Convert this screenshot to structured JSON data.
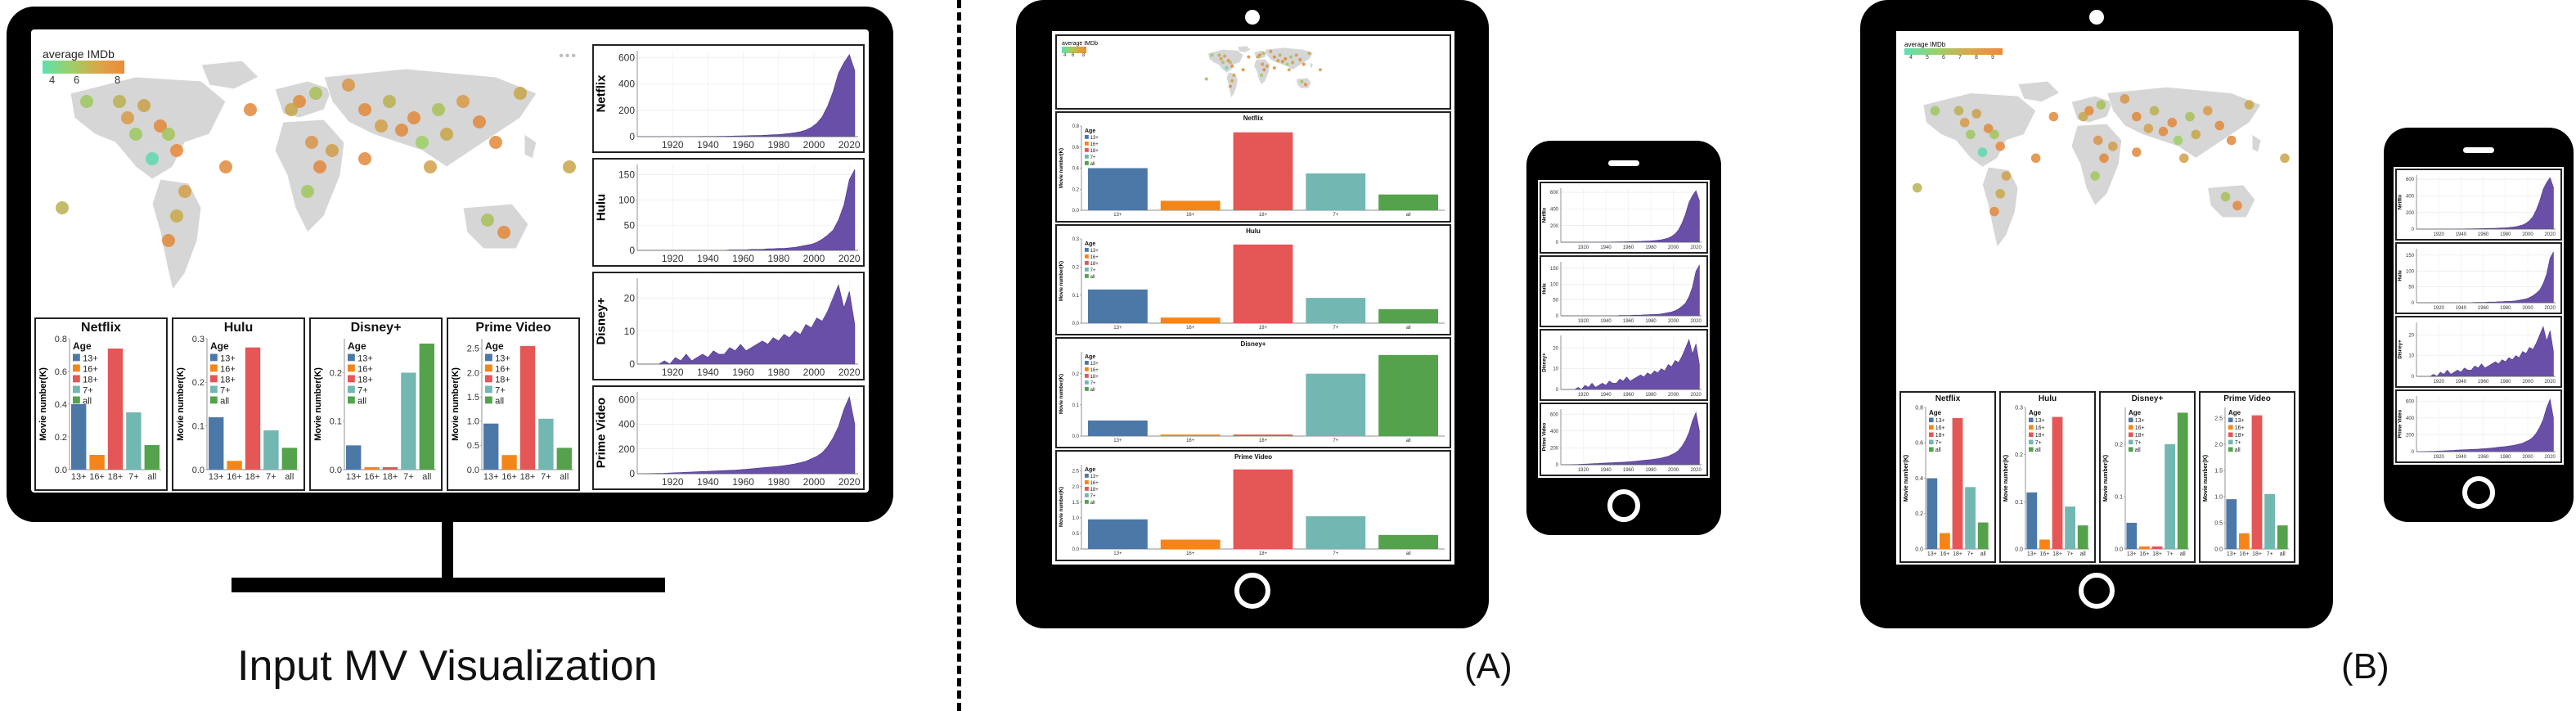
{
  "captions": {
    "input": "Input MV Visualization",
    "a": "(A)",
    "b": "(B)"
  },
  "colors": {
    "ocean": "#ffffff",
    "land": "#d6d6d6",
    "area_fill": "#6a4fa8",
    "age_colors": [
      "#4c78a8",
      "#f58518",
      "#e45756",
      "#72b7b2",
      "#54a24b"
    ]
  },
  "map": {
    "legend_title": "average IMDb",
    "legend_ticks": [
      "4",
      "6",
      "8"
    ],
    "legend_ticks_b": [
      "4",
      "5",
      "6",
      "7",
      "8",
      "9"
    ],
    "legend_gradient": [
      "#5ee0b0",
      "#9ad06a",
      "#d8a84a",
      "#f08a3a"
    ]
  },
  "age_legend": {
    "title": "Age",
    "labels": [
      "13+",
      "16+",
      "18+",
      "7+",
      "all"
    ]
  },
  "bar_y_label": "Movie number(K)",
  "bar_charts": [
    {
      "service": "Netflix",
      "ticks": [
        "0.8",
        "0.6",
        "0.4",
        "0.2",
        "0.0"
      ],
      "ymax": 0.8,
      "values": [
        0.4,
        0.09,
        0.74,
        0.35,
        0.15
      ]
    },
    {
      "service": "Hulu",
      "ticks": [
        "0.3",
        "0.2",
        "0.1",
        "0.0"
      ],
      "ymax": 0.3,
      "values": [
        0.12,
        0.02,
        0.28,
        0.09,
        0.05
      ]
    },
    {
      "service": "Disney+",
      "ticks": [
        "0.2",
        "0.1",
        "0.0"
      ],
      "ymax": 0.27,
      "values": [
        0.05,
        0.005,
        0.005,
        0.2,
        0.26
      ]
    },
    {
      "service": "Prime Video",
      "ticks": [
        "2.5",
        "2.0",
        "1.5",
        "1.0",
        "0.5",
        "0.0"
      ],
      "ymax": 2.7,
      "values": [
        0.95,
        0.3,
        2.55,
        1.05,
        0.45
      ]
    }
  ],
  "bar_x_labels": [
    "13+",
    "16+",
    "18+",
    "7+",
    "all"
  ],
  "time_series": {
    "x_ticks": [
      "1920",
      "1940",
      "1960",
      "1980",
      "2000",
      "2020"
    ],
    "x_range": [
      1900,
      2025
    ],
    "panels": [
      {
        "service": "Netflix",
        "ticks": [
          "600",
          "400",
          "200",
          "0"
        ],
        "ymax": 650,
        "values": [
          0,
          0,
          0,
          0,
          0,
          0,
          0,
          1,
          1,
          1,
          1,
          1,
          2,
          2,
          2,
          3,
          3,
          4,
          5,
          6,
          7,
          8,
          9,
          10,
          12,
          14,
          16,
          20,
          24,
          30,
          38,
          50,
          70,
          100,
          150,
          230,
          340,
          480,
          560,
          620,
          500
        ]
      },
      {
        "service": "Hulu",
        "ticks": [
          "150",
          "100",
          "50",
          "0"
        ],
        "ymax": 170,
        "values": [
          0,
          0,
          0,
          0,
          0,
          0,
          0,
          0,
          0,
          0,
          0,
          0,
          0,
          0,
          0,
          0,
          0,
          1,
          1,
          1,
          1,
          2,
          2,
          2,
          3,
          3,
          4,
          4,
          5,
          6,
          8,
          10,
          12,
          16,
          22,
          30,
          40,
          60,
          90,
          140,
          160
        ]
      },
      {
        "service": "Disney+",
        "ticks": [
          "20",
          "10",
          "0"
        ],
        "ymax": 26,
        "values": [
          0,
          0,
          0,
          0,
          0,
          1,
          0,
          2,
          1,
          3,
          1,
          2,
          3,
          2,
          4,
          3,
          3,
          5,
          4,
          6,
          4,
          5,
          6,
          7,
          6,
          8,
          7,
          9,
          8,
          10,
          9,
          12,
          11,
          14,
          13,
          16,
          20,
          24,
          17,
          22,
          12
        ]
      },
      {
        "service": "Prime Video",
        "ticks": [
          "600",
          "400",
          "200",
          "0"
        ],
        "ymax": 660,
        "values": [
          0,
          0,
          1,
          2,
          3,
          4,
          6,
          8,
          10,
          12,
          14,
          16,
          18,
          20,
          22,
          24,
          26,
          28,
          30,
          33,
          36,
          40,
          44,
          48,
          52,
          56,
          60,
          66,
          72,
          80,
          90,
          100,
          120,
          140,
          170,
          220,
          290,
          380,
          520,
          620,
          400
        ]
      }
    ]
  }
}
